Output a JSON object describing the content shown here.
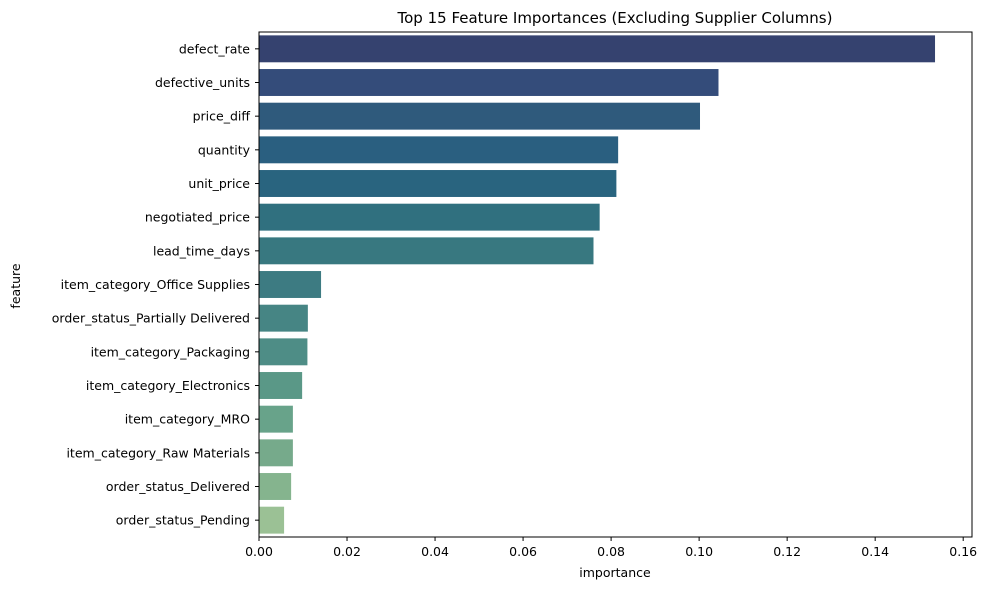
{
  "chart_data": {
    "type": "bar",
    "orientation": "horizontal",
    "title": "Top 15 Feature Importances (Excluding Supplier Columns)",
    "xlabel": "importance",
    "ylabel": "feature",
    "xlim": [
      0,
      0.162
    ],
    "xticks": [
      0.0,
      0.02,
      0.04,
      0.06,
      0.08,
      0.1,
      0.12,
      0.14,
      0.16
    ],
    "xtick_labels": [
      "0.00",
      "0.02",
      "0.04",
      "0.06",
      "0.08",
      "0.10",
      "0.12",
      "0.14",
      "0.16"
    ],
    "grid": false,
    "legend": "none",
    "palette": "crest",
    "categories": [
      "defect_rate",
      "defective_units",
      "price_diff",
      "quantity",
      "unit_price",
      "negotiated_price",
      "lead_time_days",
      "item_category_Office Supplies",
      "order_status_Partially Delivered",
      "item_category_Packaging",
      "item_category_Electronics",
      "item_category_MRO",
      "item_category_Raw Materials",
      "order_status_Delivered",
      "order_status_Pending"
    ],
    "values": [
      0.1536,
      0.1044,
      0.1002,
      0.0816,
      0.0812,
      0.0774,
      0.076,
      0.0141,
      0.0111,
      0.011,
      0.0098,
      0.0077,
      0.0077,
      0.0073,
      0.0057
    ],
    "colors": [
      "#35426f",
      "#344c7a",
      "#2f5a7c",
      "#2a5f80",
      "#29647f",
      "#30707f",
      "#387880",
      "#3d7b82",
      "#468584",
      "#4e8d86",
      "#5a9887",
      "#68a38a",
      "#76aa8b",
      "#85b48e",
      "#9bc195"
    ]
  }
}
